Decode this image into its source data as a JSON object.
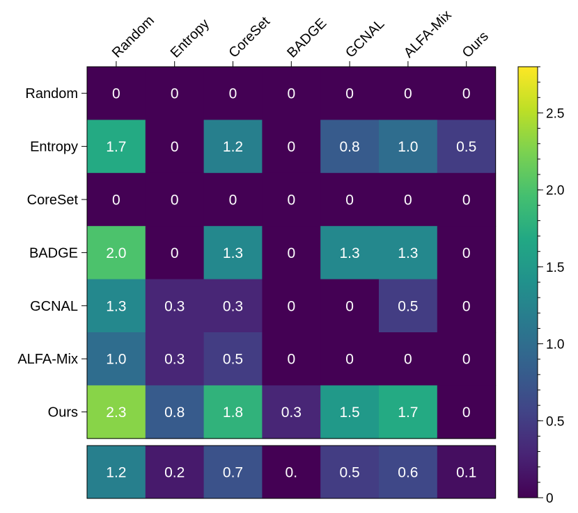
{
  "chart_data": {
    "type": "heatmap",
    "title": "",
    "xlabel": "",
    "ylabel": "",
    "x_categories": [
      "Random",
      "Entropy",
      "CoreSet",
      "BADGE",
      "GCNAL",
      "ALFA-Mix",
      "Ours"
    ],
    "y_categories": [
      "Random",
      "Entropy",
      "CoreSet",
      "BADGE",
      "GCNAL",
      "ALFA-Mix",
      "Ours"
    ],
    "values": [
      [
        0,
        0,
        0,
        0,
        0,
        0,
        0
      ],
      [
        1.7,
        0,
        1.2,
        0,
        0.8,
        1.0,
        0.5
      ],
      [
        0,
        0,
        0,
        0,
        0,
        0,
        0
      ],
      [
        2.0,
        0,
        1.3,
        0,
        1.3,
        1.3,
        0
      ],
      [
        1.3,
        0.3,
        0.3,
        0,
        0,
        0.5,
        0
      ],
      [
        1.0,
        0.3,
        0.5,
        0,
        0,
        0,
        0
      ],
      [
        2.3,
        0.8,
        1.8,
        0.3,
        1.5,
        1.7,
        0
      ]
    ],
    "value_labels": [
      [
        "0",
        "0",
        "0",
        "0",
        "0",
        "0",
        "0"
      ],
      [
        "1.7",
        "0",
        "1.2",
        "0",
        "0.8",
        "1.0",
        "0.5"
      ],
      [
        "0",
        "0",
        "0",
        "0",
        "0",
        "0",
        "0"
      ],
      [
        "2.0",
        "0",
        "1.3",
        "0",
        "1.3",
        "1.3",
        "0"
      ],
      [
        "1.3",
        "0.3",
        "0.3",
        "0",
        "0",
        "0.5",
        "0"
      ],
      [
        "1.0",
        "0.3",
        "0.5",
        "0",
        "0",
        "0",
        "0"
      ],
      [
        "2.3",
        "0.8",
        "1.8",
        "0.3",
        "1.5",
        "1.7",
        "0"
      ]
    ],
    "summary_row": {
      "values": [
        1.2,
        0.2,
        0.7,
        0.0,
        0.5,
        0.6,
        0.1
      ],
      "labels": [
        "1.2",
        "0.2",
        "0.7",
        "0.",
        "0.5",
        "0.6",
        "0.1"
      ]
    },
    "colormap": "viridis",
    "vmin": 0,
    "vmax": 2.8,
    "colorbar": {
      "ticks": [
        0,
        0.5,
        1.0,
        1.5,
        2.0,
        2.5
      ],
      "tick_labels": [
        "0",
        "0.5",
        "1.0",
        "1.5",
        "2.0",
        "2.5"
      ],
      "minor_step": 0.1,
      "placement": "right"
    },
    "x_axis_position": "top",
    "grid": false,
    "legend": "none"
  }
}
